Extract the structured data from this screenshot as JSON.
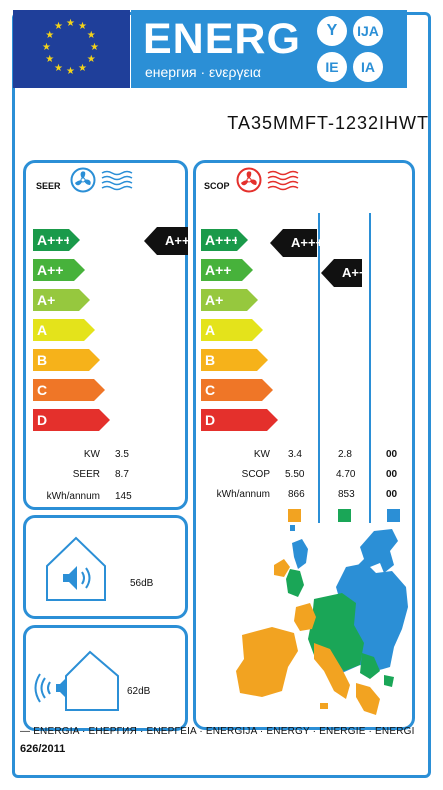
{
  "header": {
    "energy_title": "ENERG",
    "energy_subtitle": "енергия · ενεργεια",
    "lang_badges": [
      "Y",
      "IJA",
      "IE",
      "IA"
    ]
  },
  "model": "TA35MMFT-1232IHWT",
  "scale": [
    {
      "label": "A+++",
      "color": "#1a9a4a"
    },
    {
      "label": "A++",
      "color": "#47b23b"
    },
    {
      "label": "A+",
      "color": "#96c83e"
    },
    {
      "label": "A",
      "color": "#e4e31b"
    },
    {
      "label": "B",
      "color": "#f6b21a"
    },
    {
      "label": "C",
      "color": "#ef7627"
    },
    {
      "label": "D",
      "color": "#e4302c"
    }
  ],
  "seer": {
    "title": "SEER",
    "rating": "A+++",
    "rows": [
      {
        "label": "KW",
        "value": "3.5"
      },
      {
        "label": "SEER",
        "value": "8.7"
      },
      {
        "label": "kWh/annum",
        "value": "145"
      }
    ]
  },
  "scop": {
    "title": "SCOP",
    "ratings": [
      "A+++",
      "A++"
    ],
    "rows": [
      {
        "label": "KW",
        "values": [
          "3.4",
          "2.8",
          "00"
        ]
      },
      {
        "label": "SCOP",
        "values": [
          "5.50",
          "4.70",
          "00"
        ]
      },
      {
        "label": "kWh/annum",
        "values": [
          "866",
          "853",
          "00"
        ]
      }
    ],
    "climate_colors": [
      "#f2a321",
      "#1aa657",
      "#2b8fd6"
    ]
  },
  "noise": {
    "indoor": "56dB",
    "outdoor": "62dB"
  },
  "footer": {
    "languages": "ENERGIA · ЕНЕРГИЯ · ΕΝΕΡΓΕΙΑ · ENERGIJA · ENERGY · ENERGIE · ENERGI",
    "regulation": "626/2011"
  },
  "colors": {
    "accent": "#2b8fd6",
    "flag_blue": "#1f3f9a",
    "star_yellow": "#f3d31a"
  }
}
